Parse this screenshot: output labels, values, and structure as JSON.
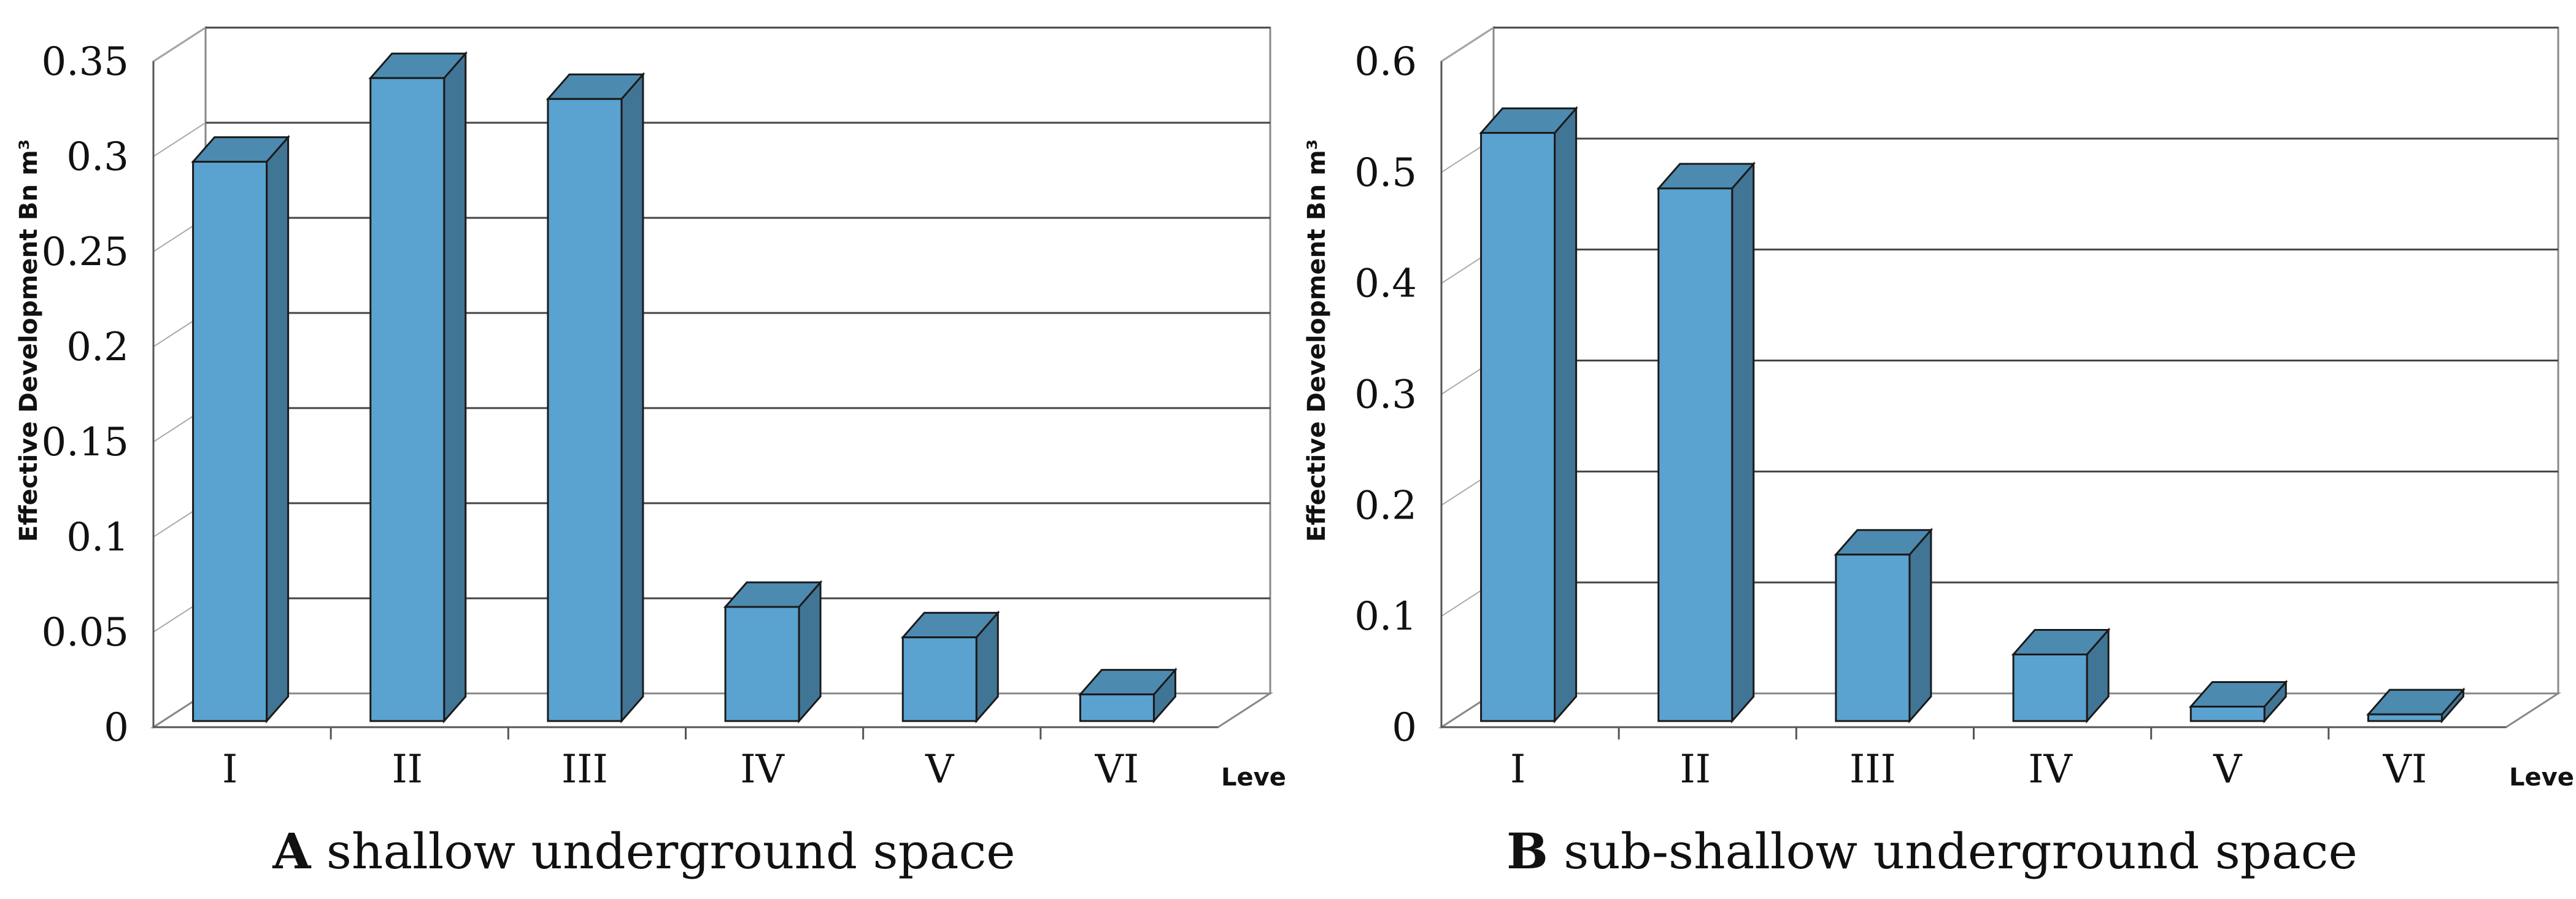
{
  "chart_data": [
    {
      "type": "bar",
      "title": "",
      "caption_letter": "A",
      "caption_text": "shallow underground space",
      "xlabel": "Level",
      "ylabel": "Effective Development Bn m³",
      "categories": [
        "I",
        "II",
        "III",
        "IV",
        "V",
        "VI"
      ],
      "values": [
        0.294,
        0.338,
        0.327,
        0.06,
        0.044,
        0.014
      ],
      "ylim": [
        0,
        0.35
      ],
      "yticks": [
        "0",
        "0.05",
        "0.1",
        "0.15",
        "0.2",
        "0.25",
        "0.3",
        "0.35"
      ],
      "grid": true,
      "bar_color": "#5aa2cf"
    },
    {
      "type": "bar",
      "title": "",
      "caption_letter": "B",
      "caption_text": "sub-shallow underground space",
      "xlabel": "Level",
      "ylabel": "Effective Development Bn m³",
      "categories": [
        "I",
        "II",
        "III",
        "IV",
        "V",
        "VI"
      ],
      "values": [
        0.53,
        0.48,
        0.15,
        0.06,
        0.013,
        0.006
      ],
      "ylim": [
        0,
        0.6
      ],
      "yticks": [
        "0",
        "0.1",
        "0.2",
        "0.3",
        "0.4",
        "0.5",
        "0.6"
      ],
      "grid": true,
      "bar_color": "#5aa2cf"
    }
  ]
}
